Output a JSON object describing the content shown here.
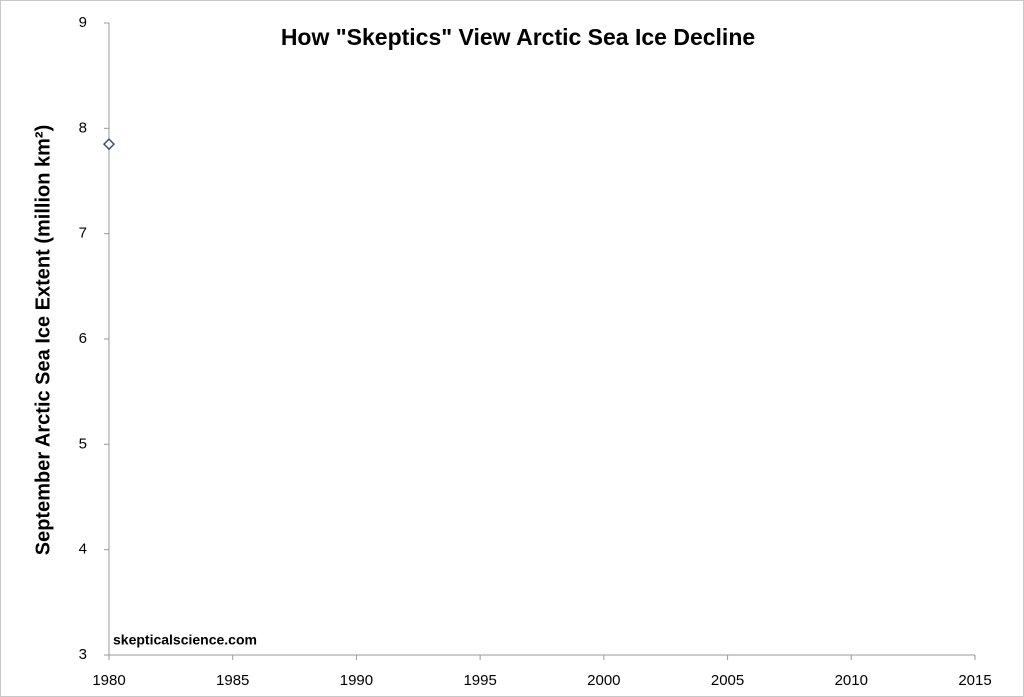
{
  "chart_data": {
    "type": "scatter",
    "title": "How \"Skeptics\" View Arctic Sea Ice Decline",
    "y_label": "September Arctic Sea Ice Extent (million km²)",
    "annotation": "skepticalscience.com",
    "x": [
      1980
    ],
    "values": [
      7.85
    ],
    "color": "#34507a",
    "marker": "diamond",
    "xlim": [
      1980,
      2015
    ],
    "xticks": [
      1980,
      1985,
      1990,
      1995,
      2000,
      2005,
      2010,
      2015
    ],
    "ylim": [
      3,
      9
    ],
    "yticks": [
      3,
      4,
      5,
      6,
      7,
      8,
      9
    ],
    "grid": false
  }
}
